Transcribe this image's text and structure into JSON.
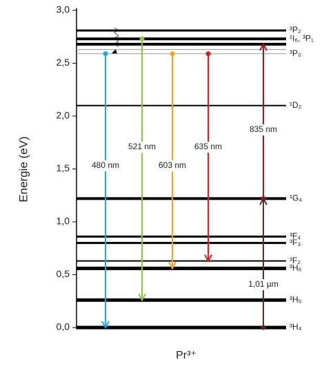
{
  "chart_data": {
    "type": "energy-level",
    "ylabel": "Energie (eV)",
    "xlabel": "Pr³⁺",
    "ylim": [
      0,
      3.0
    ],
    "yticks": [
      {
        "value": 0,
        "label": "0,0"
      },
      {
        "value": 0.5,
        "label": "0,5"
      },
      {
        "value": 1.0,
        "label": "1,0"
      },
      {
        "value": 1.5,
        "label": "1,5"
      },
      {
        "value": 2.0,
        "label": "2,0"
      },
      {
        "value": 2.5,
        "label": "2,5"
      },
      {
        "value": 3.0,
        "label": "3,0"
      }
    ],
    "levels": [
      {
        "label": "³P₂",
        "energy": 2.81,
        "color": "#000000",
        "linewidth": 3
      },
      {
        "label": "¹I₆, ³P₁",
        "energy": 2.73,
        "color": "#000000",
        "linewidth": 4
      },
      {
        "label": null,
        "energy": 2.68,
        "color": "#000000",
        "linewidth": 4
      },
      {
        "label": null,
        "energy": 2.63,
        "color": "#999999",
        "linewidth": 1
      },
      {
        "label": "³P₀",
        "energy": 2.59,
        "color": "#999999",
        "linewidth": 1
      },
      {
        "label": "¹D₂",
        "energy": 2.1,
        "color": "#000000",
        "linewidth": 2
      },
      {
        "label": "¹G₄",
        "energy": 1.22,
        "color": "#000000",
        "linewidth": 4
      },
      {
        "label": "³F₄",
        "energy": 0.86,
        "color": "#000000",
        "linewidth": 3
      },
      {
        "label": "³F₃",
        "energy": 0.8,
        "color": "#000000",
        "linewidth": 3
      },
      {
        "label": "³F₂",
        "energy": 0.63,
        "color": "#000000",
        "linewidth": 2
      },
      {
        "label": "³H₆",
        "energy": 0.56,
        "color": "#000000",
        "linewidth": 5
      },
      {
        "label": "³H₅",
        "energy": 0.26,
        "color": "#000000",
        "linewidth": 5
      },
      {
        "label": "³H₄",
        "energy": 0.0,
        "color": "#000000",
        "linewidth": 5
      }
    ],
    "transitions": [
      {
        "label": "480 nm",
        "from": 2.59,
        "to": 0.0,
        "color": "#1ea7e1"
      },
      {
        "label": "521 nm",
        "from": 2.73,
        "to": 0.26,
        "color": "#8cc63f"
      },
      {
        "label": "603 nm",
        "from": 2.59,
        "to": 0.56,
        "color": "#f5a31a"
      },
      {
        "label": "635 nm",
        "from": 2.59,
        "to": 0.63,
        "color": "#e01b1b"
      },
      {
        "label": "835 nm",
        "from": 1.22,
        "to": 2.68,
        "color": "#a0141e"
      },
      {
        "label": "1,01 µm",
        "from": 0.0,
        "to": 1.22,
        "color": "#5a2a2a"
      }
    ]
  }
}
